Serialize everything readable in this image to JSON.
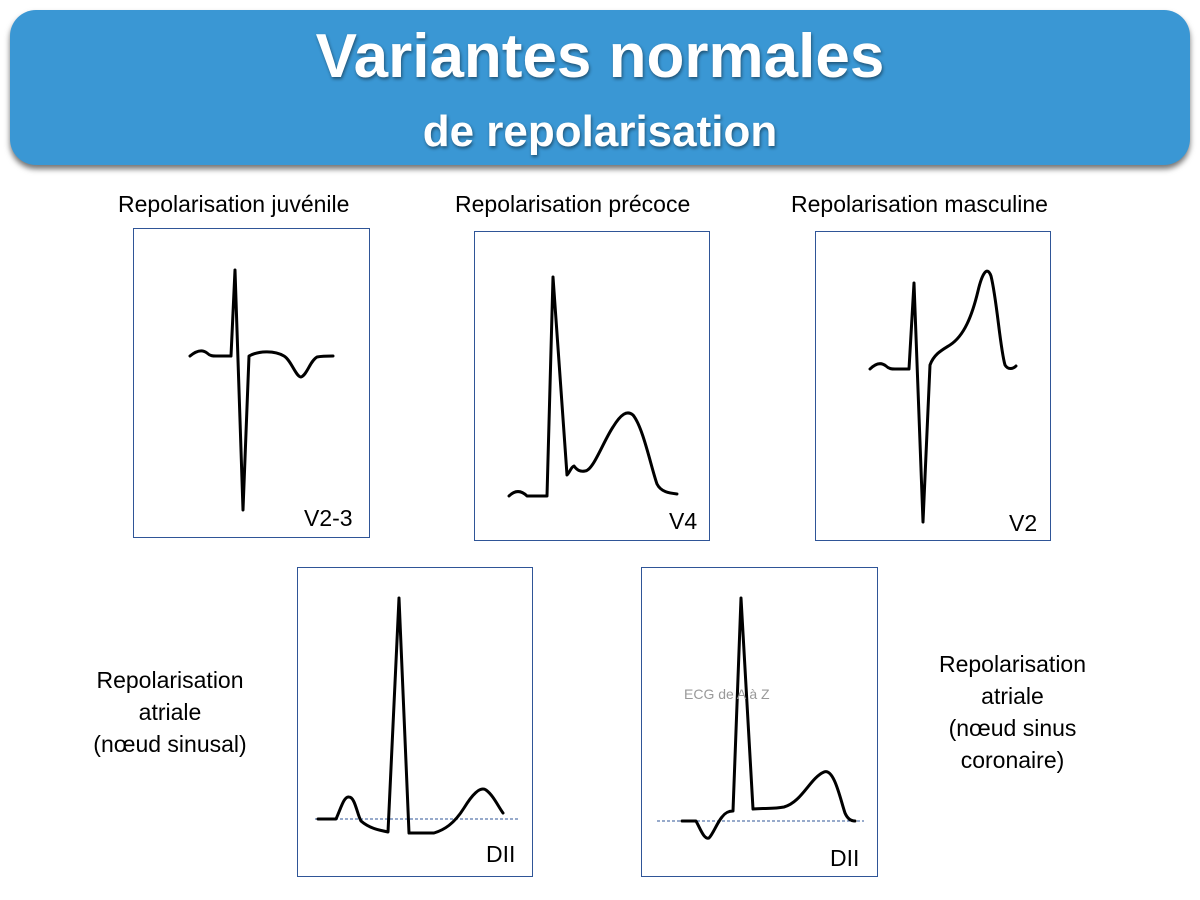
{
  "header": {
    "title": "Variantes normales",
    "subtitle": "de repolarisation"
  },
  "panels": [
    {
      "caption": "Repolarisation juvénile",
      "lead": "V2-3"
    },
    {
      "caption": "Repolarisation précoce",
      "lead": "V4"
    },
    {
      "caption": "Repolarisation masculine",
      "lead": "V2"
    },
    {
      "caption": "Repolarisation atriale (nœud sinusal)",
      "caption_lines": [
        "Repolarisation",
        "atriale",
        "(nœud sinusal)"
      ],
      "lead": "DII"
    },
    {
      "caption": "Repolarisation atriale (nœud sinus coronaire)",
      "caption_lines": [
        "Repolarisation",
        "atriale",
        "(nœud sinus",
        "coronaire)"
      ],
      "lead": "DII"
    }
  ],
  "watermark": "ECG de A à Z",
  "colors": {
    "banner": "#3a97d4",
    "panel_border": "#2f5597",
    "banner_text": "#ffffff"
  }
}
